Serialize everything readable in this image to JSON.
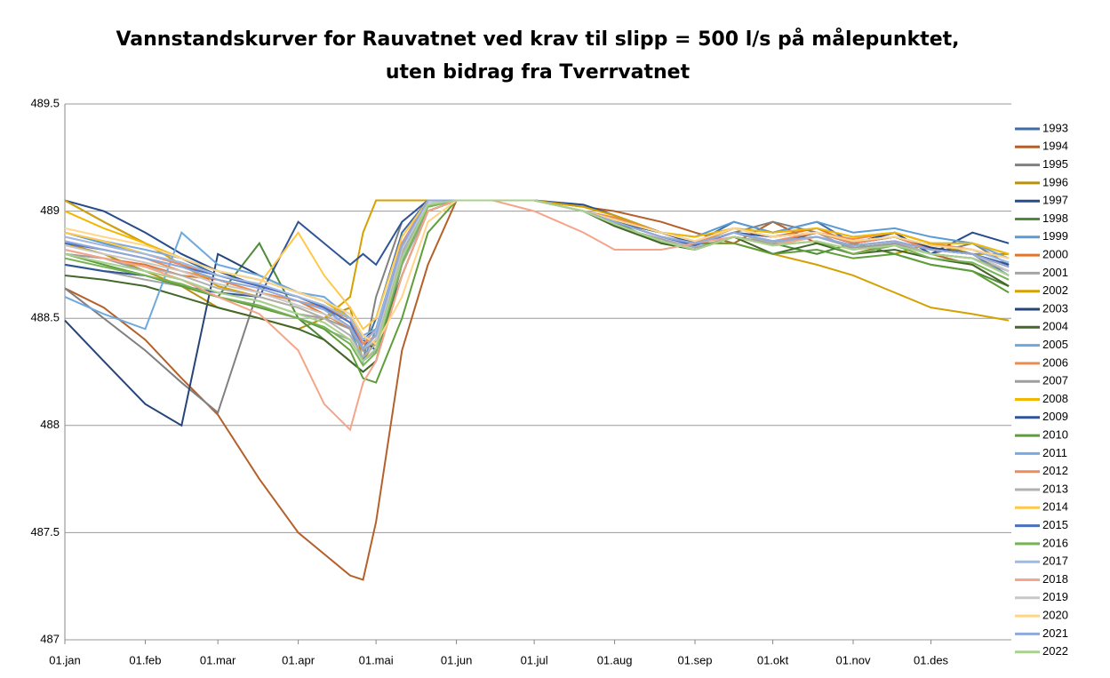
{
  "chart_data": {
    "type": "line",
    "title": [
      "Vannstandskurver for Rauvatnet ved krav til slipp = 500 l/s på målepunktet,",
      "uten bidrag fra Tverrvatnet"
    ],
    "x": [
      0,
      15,
      31,
      45,
      59,
      75,
      90,
      100,
      110,
      115,
      120,
      130,
      140,
      151,
      165,
      181,
      200,
      212,
      230,
      243,
      258,
      273,
      290,
      304,
      320,
      334,
      350,
      364
    ],
    "xlim": [
      0,
      365
    ],
    "xticks": [
      {
        "value": 0,
        "label": "01.jan"
      },
      {
        "value": 31,
        "label": "01.feb"
      },
      {
        "value": 59,
        "label": "01.mar"
      },
      {
        "value": 90,
        "label": "01.apr"
      },
      {
        "value": 120,
        "label": "01.mai"
      },
      {
        "value": 151,
        "label": "01.jun"
      },
      {
        "value": 181,
        "label": "01.jul"
      },
      {
        "value": 212,
        "label": "01.aug"
      },
      {
        "value": 243,
        "label": "01.sep"
      },
      {
        "value": 273,
        "label": "01.okt"
      },
      {
        "value": 304,
        "label": "01.nov"
      },
      {
        "value": 334,
        "label": "01.des"
      }
    ],
    "ylim": [
      487,
      489.5
    ],
    "yticks": [
      487,
      487.5,
      488,
      488.5,
      489,
      489.5
    ],
    "grid": true,
    "legend": "right",
    "series": [
      {
        "name": "1993",
        "color": "#3D6CA6",
        "values": [
          489.05,
          488.95,
          488.85,
          488.78,
          488.7,
          488.65,
          488.6,
          488.55,
          488.45,
          488.35,
          488.5,
          488.9,
          489.05,
          489.05,
          489.05,
          489.05,
          489.0,
          488.95,
          488.9,
          488.85,
          488.95,
          488.9,
          488.95,
          488.85,
          488.9,
          488.85,
          488.8,
          488.7
        ]
      },
      {
        "name": "1994",
        "color": "#B5602A",
        "values": [
          488.64,
          488.55,
          488.4,
          488.22,
          488.05,
          487.75,
          487.5,
          487.4,
          487.3,
          487.28,
          487.55,
          488.35,
          488.75,
          489.05,
          489.05,
          489.05,
          489.02,
          489.0,
          488.95,
          488.9,
          488.85,
          488.95,
          488.85,
          488.8,
          488.85,
          488.8,
          488.75,
          488.65
        ]
      },
      {
        "name": "1995",
        "color": "#808080",
        "values": [
          488.64,
          488.5,
          488.35,
          488.2,
          488.06,
          488.65,
          488.6,
          488.55,
          488.45,
          488.3,
          488.6,
          488.95,
          489.05,
          489.05,
          489.05,
          489.05,
          489.0,
          488.97,
          488.9,
          488.85,
          488.9,
          488.95,
          488.9,
          488.85,
          488.9,
          488.8,
          488.85,
          488.75
        ]
      },
      {
        "name": "1996",
        "color": "#B8920F",
        "values": [
          488.85,
          488.8,
          488.72,
          488.65,
          488.55,
          488.5,
          488.45,
          488.5,
          488.55,
          488.3,
          488.4,
          488.8,
          489.05,
          489.05,
          489.05,
          489.05,
          489.02,
          488.98,
          488.9,
          488.85,
          488.9,
          488.85,
          488.9,
          488.85,
          488.8,
          488.85,
          488.8,
          488.8
        ]
      },
      {
        "name": "1997",
        "color": "#264C8C",
        "values": [
          489.05,
          489.0,
          488.9,
          488.8,
          488.72,
          488.65,
          488.6,
          488.55,
          488.5,
          488.4,
          488.35,
          488.7,
          489.0,
          489.05,
          489.05,
          489.05,
          489.03,
          488.98,
          488.9,
          488.85,
          488.92,
          488.88,
          488.9,
          488.85,
          488.9,
          488.8,
          488.9,
          488.85
        ]
      },
      {
        "name": "1998",
        "color": "#4E8B3A",
        "values": [
          488.75,
          488.72,
          488.7,
          488.65,
          488.6,
          488.85,
          488.5,
          488.4,
          488.3,
          488.25,
          488.3,
          488.75,
          489.05,
          489.05,
          489.05,
          489.05,
          489.0,
          488.95,
          488.85,
          488.82,
          488.88,
          488.85,
          488.8,
          488.85,
          488.8,
          488.75,
          488.72,
          488.65
        ]
      },
      {
        "name": "1999",
        "color": "#5B9BD5",
        "values": [
          488.9,
          488.85,
          488.8,
          488.75,
          488.7,
          488.65,
          488.6,
          488.55,
          488.45,
          488.3,
          488.45,
          488.85,
          489.05,
          489.05,
          489.05,
          489.05,
          489.0,
          488.95,
          488.9,
          488.88,
          488.95,
          488.9,
          488.95,
          488.9,
          488.92,
          488.88,
          488.85,
          488.8
        ]
      },
      {
        "name": "2000",
        "color": "#E0762E",
        "values": [
          488.8,
          488.78,
          488.75,
          488.7,
          488.68,
          488.62,
          488.58,
          488.52,
          488.45,
          488.35,
          488.4,
          488.8,
          489.05,
          489.05,
          489.05,
          489.05,
          489.0,
          488.95,
          488.88,
          488.85,
          488.9,
          488.88,
          488.92,
          488.85,
          488.88,
          488.82,
          488.8,
          488.72
        ]
      },
      {
        "name": "2001",
        "color": "#A5A5A5",
        "values": [
          488.75,
          488.72,
          488.68,
          488.65,
          488.6,
          488.55,
          488.5,
          488.45,
          488.4,
          488.3,
          488.35,
          488.75,
          489.0,
          489.05,
          489.05,
          489.05,
          489.0,
          488.93,
          488.87,
          488.83,
          488.88,
          488.85,
          488.9,
          488.82,
          488.85,
          488.8,
          488.78,
          488.7
        ]
      },
      {
        "name": "2002",
        "color": "#D4A100",
        "values": [
          489.05,
          488.95,
          488.85,
          488.75,
          488.65,
          488.6,
          488.55,
          488.5,
          488.6,
          488.9,
          489.05,
          489.05,
          489.05,
          489.05,
          489.05,
          489.05,
          489.02,
          488.98,
          488.9,
          488.85,
          488.85,
          488.8,
          488.75,
          488.7,
          488.62,
          488.55,
          488.52,
          488.49
        ]
      },
      {
        "name": "2003",
        "color": "#264478",
        "values": [
          488.49,
          488.3,
          488.1,
          488.0,
          488.8,
          488.7,
          488.62,
          488.58,
          488.5,
          488.4,
          488.45,
          488.85,
          489.05,
          489.05,
          489.05,
          489.05,
          489.0,
          488.95,
          488.9,
          488.85,
          488.9,
          488.85,
          488.9,
          488.85,
          488.88,
          488.83,
          488.8,
          488.75
        ]
      },
      {
        "name": "2004",
        "color": "#43682B",
        "values": [
          488.7,
          488.68,
          488.65,
          488.6,
          488.55,
          488.5,
          488.45,
          488.4,
          488.3,
          488.25,
          488.3,
          488.7,
          489.0,
          489.05,
          489.05,
          489.05,
          489.0,
          488.93,
          488.85,
          488.82,
          488.88,
          488.8,
          488.85,
          488.8,
          488.82,
          488.78,
          488.75,
          488.65
        ]
      },
      {
        "name": "2005",
        "color": "#6FA8DC",
        "values": [
          488.6,
          488.52,
          488.45,
          488.9,
          488.75,
          488.7,
          488.62,
          488.6,
          488.5,
          488.35,
          488.4,
          488.8,
          489.05,
          489.05,
          489.05,
          489.05,
          489.0,
          488.95,
          488.88,
          488.85,
          488.92,
          488.9,
          488.92,
          488.88,
          488.9,
          488.85,
          488.85,
          488.78
        ]
      },
      {
        "name": "2006",
        "color": "#F08C4A",
        "values": [
          488.85,
          488.82,
          488.78,
          488.72,
          488.68,
          488.62,
          488.58,
          488.55,
          488.5,
          488.38,
          488.45,
          488.85,
          489.05,
          489.05,
          489.05,
          489.05,
          489.0,
          488.97,
          488.9,
          488.85,
          488.92,
          488.88,
          488.9,
          488.87,
          488.9,
          488.85,
          488.82,
          488.78
        ]
      },
      {
        "name": "2007",
        "color": "#9E9E9E",
        "values": [
          488.8,
          488.78,
          488.72,
          488.68,
          488.62,
          488.58,
          488.52,
          488.5,
          488.45,
          488.35,
          488.4,
          488.82,
          489.05,
          489.05,
          489.05,
          489.05,
          489.0,
          488.95,
          488.88,
          488.85,
          488.9,
          488.85,
          488.88,
          488.83,
          488.85,
          488.8,
          488.78,
          488.72
        ]
      },
      {
        "name": "2008",
        "color": "#F2B800",
        "values": [
          489.0,
          488.92,
          488.85,
          488.78,
          488.72,
          488.68,
          488.62,
          488.58,
          488.5,
          488.42,
          488.45,
          488.85,
          489.05,
          489.05,
          489.05,
          489.05,
          489.0,
          488.95,
          488.9,
          488.88,
          488.92,
          488.9,
          488.92,
          488.88,
          488.9,
          488.85,
          488.85,
          488.8
        ]
      },
      {
        "name": "2009",
        "color": "#2F5597",
        "values": [
          488.75,
          488.72,
          488.7,
          488.65,
          488.62,
          488.6,
          488.95,
          488.85,
          488.75,
          488.8,
          488.75,
          488.95,
          489.05,
          489.05,
          489.05,
          489.05,
          489.0,
          488.95,
          488.9,
          488.85,
          488.9,
          488.88,
          488.9,
          488.85,
          488.88,
          488.82,
          488.8,
          488.75
        ]
      },
      {
        "name": "2010",
        "color": "#5E9E3A",
        "values": [
          488.8,
          488.75,
          488.7,
          488.65,
          488.6,
          488.55,
          488.5,
          488.45,
          488.35,
          488.22,
          488.2,
          488.5,
          488.9,
          489.05,
          489.05,
          489.05,
          489.0,
          488.95,
          488.88,
          488.85,
          488.85,
          488.8,
          488.82,
          488.78,
          488.8,
          488.75,
          488.72,
          488.62
        ]
      },
      {
        "name": "2011",
        "color": "#7BAAE0",
        "values": [
          488.9,
          488.86,
          488.82,
          488.78,
          488.72,
          488.68,
          488.62,
          488.58,
          488.52,
          488.42,
          488.45,
          488.85,
          489.05,
          489.05,
          489.05,
          489.05,
          489.0,
          488.96,
          488.9,
          488.86,
          488.92,
          488.88,
          488.9,
          488.86,
          488.88,
          488.84,
          488.82,
          488.76
        ]
      },
      {
        "name": "2012",
        "color": "#EE8A5E",
        "values": [
          488.88,
          488.84,
          488.8,
          488.75,
          488.7,
          488.65,
          488.6,
          488.56,
          488.48,
          488.38,
          488.42,
          488.85,
          489.05,
          489.05,
          489.05,
          489.05,
          489.0,
          488.95,
          488.88,
          488.85,
          488.9,
          488.86,
          488.9,
          488.85,
          488.88,
          488.82,
          488.8,
          488.74
        ]
      },
      {
        "name": "2013",
        "color": "#B0B0B0",
        "values": [
          488.82,
          488.78,
          488.74,
          488.7,
          488.64,
          488.6,
          488.55,
          488.5,
          488.42,
          488.32,
          488.38,
          488.8,
          489.02,
          489.05,
          489.05,
          489.05,
          489.0,
          488.94,
          488.86,
          488.84,
          488.9,
          488.85,
          488.88,
          488.84,
          488.86,
          488.8,
          488.78,
          488.7
        ]
      },
      {
        "name": "2014",
        "color": "#FFC84A",
        "values": [
          488.9,
          488.86,
          488.8,
          488.76,
          488.7,
          488.66,
          488.9,
          488.7,
          488.55,
          488.45,
          488.5,
          488.88,
          489.05,
          489.05,
          489.05,
          489.05,
          489.0,
          488.96,
          488.9,
          488.86,
          488.92,
          488.88,
          488.9,
          488.86,
          488.88,
          488.84,
          488.82,
          488.78
        ]
      },
      {
        "name": "2015",
        "color": "#4A6FC0",
        "values": [
          488.85,
          488.82,
          488.78,
          488.74,
          488.7,
          488.65,
          488.6,
          488.55,
          488.48,
          488.36,
          488.42,
          488.82,
          489.05,
          489.05,
          489.05,
          489.05,
          489.0,
          488.95,
          488.88,
          488.84,
          488.9,
          488.86,
          488.88,
          488.84,
          488.86,
          488.82,
          488.8,
          488.74
        ]
      },
      {
        "name": "2016",
        "color": "#77B255",
        "values": [
          488.78,
          488.74,
          488.7,
          488.66,
          488.6,
          488.56,
          488.5,
          488.46,
          488.38,
          488.28,
          488.34,
          488.76,
          489.02,
          489.05,
          489.05,
          489.05,
          489.0,
          488.94,
          488.86,
          488.82,
          488.88,
          488.84,
          488.86,
          488.8,
          488.84,
          488.78,
          488.76,
          488.68
        ]
      },
      {
        "name": "2017",
        "color": "#9DB9E6",
        "values": [
          488.88,
          488.84,
          488.8,
          488.76,
          488.7,
          488.66,
          488.6,
          488.56,
          488.5,
          488.4,
          488.44,
          488.84,
          489.05,
          489.05,
          489.05,
          489.05,
          489.0,
          488.96,
          488.9,
          488.86,
          488.92,
          488.88,
          488.9,
          488.86,
          488.88,
          488.84,
          488.82,
          488.76
        ]
      },
      {
        "name": "2018",
        "color": "#F4A58A",
        "values": [
          488.82,
          488.78,
          488.74,
          488.68,
          488.6,
          488.52,
          488.35,
          488.1,
          487.98,
          488.2,
          488.3,
          488.7,
          489.0,
          489.05,
          489.05,
          489.0,
          488.9,
          488.82,
          488.82,
          488.85,
          488.88,
          488.84,
          488.88,
          488.84,
          488.86,
          488.82,
          488.8,
          488.74
        ]
      },
      {
        "name": "2019",
        "color": "#C8C8C8",
        "values": [
          488.84,
          488.8,
          488.76,
          488.72,
          488.66,
          488.62,
          488.56,
          488.52,
          488.46,
          488.36,
          488.4,
          488.82,
          489.04,
          489.05,
          489.05,
          489.05,
          489.0,
          488.95,
          488.88,
          488.85,
          488.9,
          488.86,
          488.88,
          488.84,
          488.86,
          488.82,
          488.8,
          488.72
        ]
      },
      {
        "name": "2020",
        "color": "#FFD58A",
        "values": [
          488.92,
          488.88,
          488.84,
          488.78,
          488.72,
          488.68,
          488.62,
          488.58,
          488.52,
          488.42,
          488.38,
          488.6,
          488.95,
          489.05,
          489.05,
          489.05,
          489.0,
          488.96,
          488.9,
          488.86,
          488.92,
          488.88,
          488.9,
          488.86,
          488.88,
          488.84,
          488.82,
          488.78
        ]
      },
      {
        "name": "2021",
        "color": "#8FAADC",
        "values": [
          488.86,
          488.82,
          488.78,
          488.74,
          488.68,
          488.64,
          488.58,
          488.54,
          488.46,
          488.36,
          488.42,
          488.84,
          489.05,
          489.05,
          489.05,
          489.05,
          489.0,
          488.95,
          488.88,
          488.85,
          488.9,
          488.86,
          488.88,
          488.84,
          488.86,
          488.82,
          488.8,
          488.74
        ]
      },
      {
        "name": "2022",
        "color": "#A9D18E",
        "values": [
          488.8,
          488.76,
          488.72,
          488.68,
          488.62,
          488.58,
          488.52,
          488.48,
          488.4,
          488.3,
          488.36,
          488.78,
          489.03,
          489.05,
          489.05,
          489.05,
          489.0,
          488.94,
          488.86,
          488.82,
          488.88,
          488.84,
          488.86,
          488.82,
          488.84,
          488.8,
          488.78,
          488.7
        ]
      }
    ]
  }
}
